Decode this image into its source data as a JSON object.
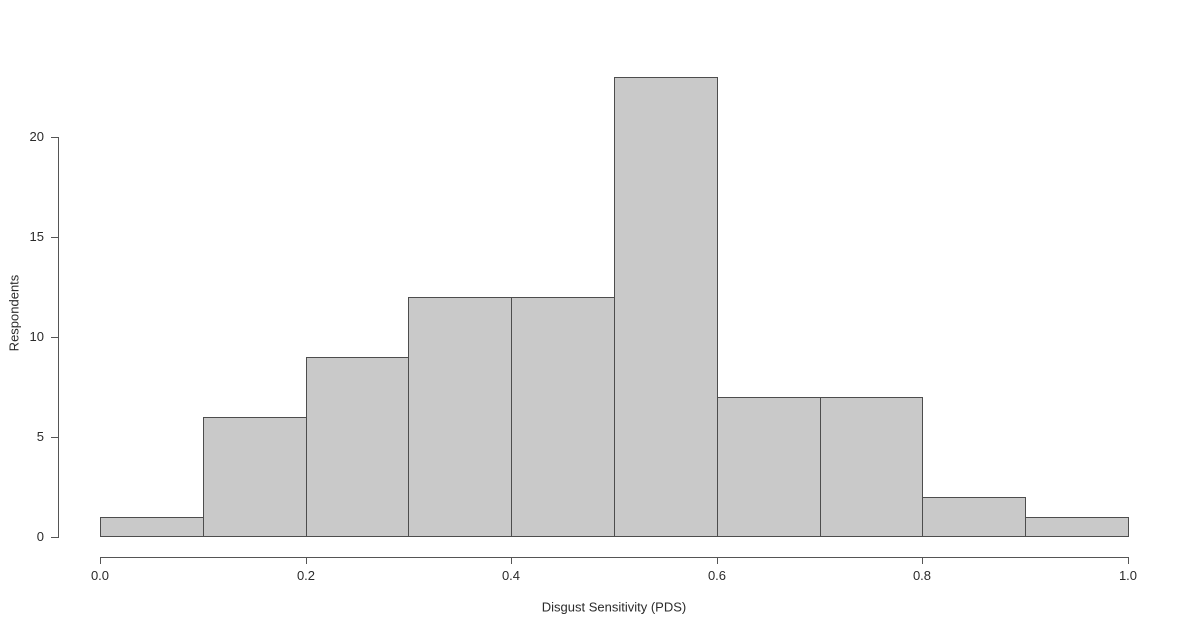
{
  "chart_data": {
    "type": "bar",
    "chart_kind": "histogram",
    "title": "",
    "xlabel": "Disgust Sensitivity (PDS)",
    "ylabel": "Respondents",
    "bin_edges": [
      0.0,
      0.1,
      0.2,
      0.3,
      0.4,
      0.5,
      0.6,
      0.7,
      0.8,
      0.9,
      1.0
    ],
    "counts": [
      1,
      6,
      9,
      12,
      12,
      23,
      7,
      7,
      2,
      1
    ],
    "x_ticks": [
      {
        "value": 0.0,
        "label": "0.0"
      },
      {
        "value": 0.2,
        "label": "0.2"
      },
      {
        "value": 0.4,
        "label": "0.4"
      },
      {
        "value": 0.6,
        "label": "0.6"
      },
      {
        "value": 0.8,
        "label": "0.8"
      },
      {
        "value": 1.0,
        "label": "1.0"
      }
    ],
    "y_ticks": [
      {
        "value": 0,
        "label": "0"
      },
      {
        "value": 5,
        "label": "5"
      },
      {
        "value": 10,
        "label": "10"
      },
      {
        "value": 15,
        "label": "15"
      },
      {
        "value": 20,
        "label": "20"
      }
    ],
    "xlim": [
      0.0,
      1.0
    ],
    "ylim": [
      0,
      20
    ],
    "grid": false,
    "legend": null,
    "colors": {
      "background": "#ffffff",
      "bar_fill": "#c9c9c9",
      "bar_border": "#4d4d4d",
      "axis": "#555555",
      "text": "#2b2b2b"
    }
  }
}
